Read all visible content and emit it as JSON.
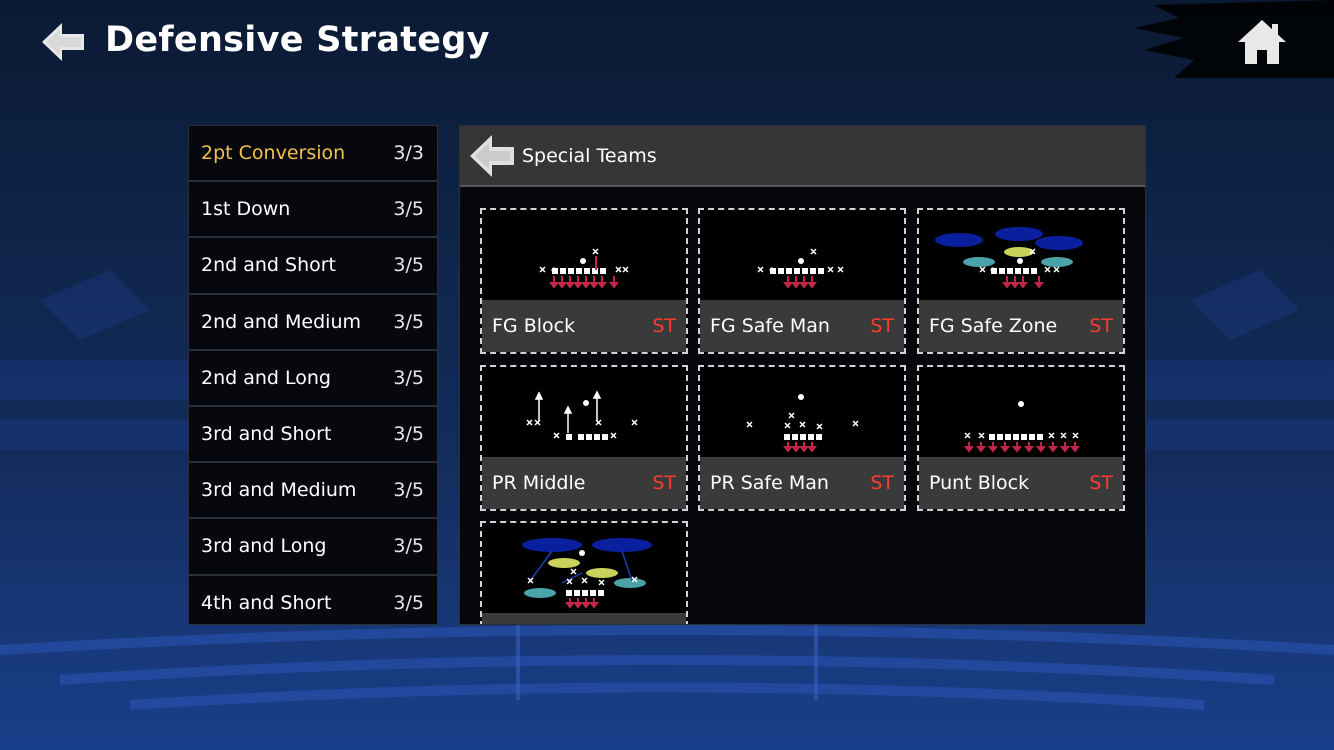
{
  "header": {
    "title": "Defensive Strategy",
    "back_icon": "back-arrow-icon",
    "home_icon": "home-icon"
  },
  "situations": [
    {
      "name": "2pt Conversion",
      "count": "3/3",
      "selected": true
    },
    {
      "name": "1st Down",
      "count": "3/5"
    },
    {
      "name": "2nd and Short",
      "count": "3/5"
    },
    {
      "name": "2nd and Medium",
      "count": "3/5"
    },
    {
      "name": "2nd and Long",
      "count": "3/5"
    },
    {
      "name": "3rd and Short",
      "count": "3/5"
    },
    {
      "name": "3rd and Medium",
      "count": "3/5"
    },
    {
      "name": "3rd and Long",
      "count": "3/5"
    },
    {
      "name": "4th and Short",
      "count": "3/5"
    }
  ],
  "panel": {
    "title": "Special Teams",
    "plays": [
      {
        "name": "FG Block",
        "tag": "ST"
      },
      {
        "name": "FG Safe Man",
        "tag": "ST"
      },
      {
        "name": "FG Safe Zone",
        "tag": "ST"
      },
      {
        "name": "PR Middle",
        "tag": "ST"
      },
      {
        "name": "PR Safe Man",
        "tag": "ST"
      },
      {
        "name": "Punt Block",
        "tag": "ST"
      },
      {
        "name": "",
        "tag": ""
      }
    ]
  },
  "colors": {
    "selected_text": "#f2c14e",
    "tag": "#ff3b30",
    "rush_arrow": "#c0264a",
    "zone_deep": "#0a1f9e",
    "zone_mid": "#c8d15a",
    "zone_flat": "#4aa3a8"
  }
}
